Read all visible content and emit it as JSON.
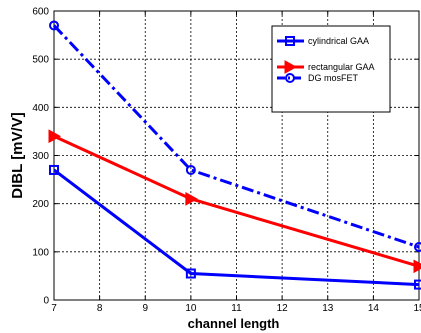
{
  "chart_data": {
    "type": "line",
    "title": "",
    "xlabel": "channel length",
    "ylabel": "DIBL [mV/V]",
    "xlim": [
      7,
      15
    ],
    "ylim": [
      0,
      600
    ],
    "xticks": [
      7,
      8,
      9,
      10,
      11,
      12,
      13,
      14,
      15
    ],
    "yticks": [
      0,
      100,
      200,
      300,
      400,
      500,
      600
    ],
    "grid": true,
    "legend_position": "top-right",
    "series": [
      {
        "name": "cylindrical GAA",
        "x": [
          7,
          10,
          15
        ],
        "y": [
          270,
          55,
          32
        ],
        "color": "#0000ff",
        "line_style": "solid",
        "marker": "square"
      },
      {
        "name": "rectangular GAA",
        "x": [
          7,
          10,
          15
        ],
        "y": [
          340,
          210,
          70
        ],
        "color": "#ff0000",
        "line_style": "solid",
        "marker": "triangle-right"
      },
      {
        "name": "DG mosFET",
        "x": [
          7,
          10,
          15
        ],
        "y": [
          570,
          270,
          110
        ],
        "color": "#0000ff",
        "line_style": "dashdot",
        "marker": "circle"
      }
    ]
  }
}
